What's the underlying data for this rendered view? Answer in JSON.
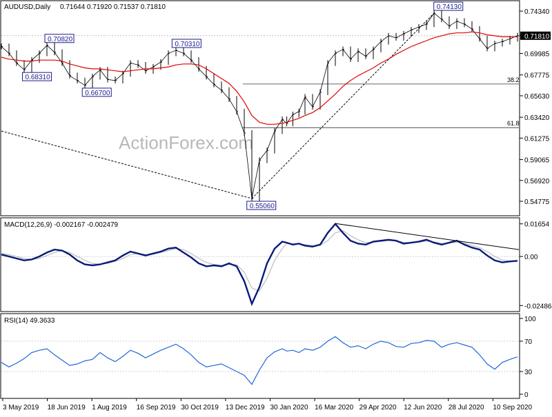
{
  "header": {
    "symbol": "AUDUSD,Daily",
    "ohlc": "0.71644 0.71920 0.71537 0.71810"
  },
  "watermark": "ActionForex.com",
  "colors": {
    "price": "#000000",
    "ma": "#e00000",
    "macd": "#0a1a7a",
    "signal": "#b0b0b0",
    "rsi": "#1f66d8",
    "background": "#ffffff"
  },
  "chart_data": [
    {
      "type": "line",
      "panel": "price",
      "ylim": [
        0.535,
        0.752
      ],
      "y_ticks": [
        "0.74340",
        "0.71810",
        "0.69985",
        "0.67775",
        "0.65630",
        "0.63420",
        "0.61275",
        "0.59065",
        "0.56920",
        "0.54775"
      ],
      "last_price": "0.71810",
      "x_ticks": [
        "3 May 2019",
        "18 Jun 2019",
        "1 Aug 2019",
        "16 Sep 2019",
        "30 Oct 2019",
        "13 Dec 2019",
        "30 Jan 2020",
        "16 Mar 2020",
        "29 Apr 2020",
        "12 Jun 2020",
        "28 Jul 2020",
        "10 Sep 2020"
      ],
      "x": [
        0,
        5,
        10,
        15,
        20,
        25,
        30,
        35,
        40,
        45,
        50,
        55,
        60,
        65,
        70,
        75,
        80,
        85,
        90,
        95,
        100,
        105,
        110,
        115,
        120,
        125,
        130,
        135,
        140,
        145,
        150,
        155,
        160,
        165,
        170,
        175,
        180,
        185,
        188,
        192,
        196,
        200,
        205,
        210,
        215,
        220,
        225,
        230,
        235,
        240,
        245,
        250,
        255,
        260,
        265,
        270,
        275,
        280,
        285,
        290,
        295,
        300,
        305,
        310,
        315,
        320,
        325,
        330,
        335,
        340
      ],
      "series": [
        {
          "values": [
            0.707,
            0.7,
            0.69,
            0.6831,
            0.693,
            0.7,
            0.7082,
            0.701,
            0.69,
            0.677,
            0.672,
            0.667,
            0.676,
            0.683,
            0.673,
            0.672,
            0.679,
            0.69,
            0.688,
            0.682,
            0.686,
            0.691,
            0.7,
            0.7031,
            0.7,
            0.693,
            0.684,
            0.676,
            0.668,
            0.662,
            0.653,
            0.64,
            0.618,
            0.5506,
            0.59,
            0.6,
            0.62,
            0.632,
            0.628,
            0.637,
            0.64,
            0.655,
            0.645,
            0.66,
            0.69,
            0.7,
            0.704,
            0.694,
            0.702,
            0.697,
            0.704,
            0.712,
            0.718,
            0.716,
            0.72,
            0.724,
            0.727,
            0.73,
            0.7413,
            0.735,
            0.728,
            0.733,
            0.73,
            0.725,
            0.715,
            0.705,
            0.71,
            0.712,
            0.715,
            0.7181
          ]
        },
        {
          "values": [
            0.696,
            0.694,
            0.693,
            0.692,
            0.692,
            0.693,
            0.693,
            0.693,
            0.692,
            0.689,
            0.687,
            0.685,
            0.684,
            0.684,
            0.683,
            0.682,
            0.681,
            0.682,
            0.683,
            0.684,
            0.684,
            0.685,
            0.686,
            0.688,
            0.689,
            0.689,
            0.688,
            0.684,
            0.679,
            0.674,
            0.669,
            0.661,
            0.65,
            0.636,
            0.629,
            0.627,
            0.627,
            0.628,
            0.629,
            0.631,
            0.633,
            0.636,
            0.639,
            0.644,
            0.651,
            0.658,
            0.666,
            0.672,
            0.677,
            0.681,
            0.685,
            0.69,
            0.694,
            0.699,
            0.703,
            0.707,
            0.71,
            0.713,
            0.716,
            0.718,
            0.72,
            0.721,
            0.721,
            0.722,
            0.721,
            0.719,
            0.718,
            0.717,
            0.717,
            0.717
          ]
        },
        {
          "x": [
            0,
            35
          ],
          "values": [
            0.62,
            0.5506
          ]
        }
      ],
      "labels": [
        {
          "x": 3,
          "y": 0.6831,
          "text": "0.68310"
        },
        {
          "x": 6,
          "y": 0.7082,
          "text": "0.70820"
        },
        {
          "x": 11,
          "y": 0.667,
          "text": "0.66700"
        },
        {
          "x": 23,
          "y": 0.7031,
          "text": "0.70310"
        },
        {
          "x": 33,
          "y": 0.5506,
          "text": "0.55060"
        },
        {
          "x": 58,
          "y": 0.7413,
          "text": "0.74130"
        }
      ],
      "fibonacci": [
        {
          "label": "38.2",
          "level": 0.6684
        },
        {
          "label": "61.8",
          "level": 0.6235
        }
      ]
    },
    {
      "type": "line",
      "panel": "macd",
      "title": "MACD(12,26,9) -0.002167 -0.002479",
      "ylim": [
        -0.0265,
        0.0175
      ],
      "y_ticks": [
        "0.01654",
        "0.00",
        "-0.02486"
      ],
      "series": [
        {
          "values": [
            0.001,
            0.0,
            -0.001,
            -0.002,
            -0.0015,
            0.0,
            0.002,
            0.0035,
            0.003,
            0.001,
            -0.002,
            -0.004,
            -0.0045,
            -0.004,
            -0.003,
            -0.002,
            0.0005,
            0.0025,
            0.0015,
            0.0005,
            0.0015,
            0.0025,
            0.004,
            0.0045,
            0.002,
            -0.0005,
            -0.0035,
            -0.005,
            -0.0045,
            -0.005,
            -0.0035,
            -0.005,
            -0.0125,
            -0.024,
            -0.0155,
            -0.0035,
            0.004,
            0.0075,
            0.007,
            0.006,
            0.0065,
            0.0055,
            0.005,
            0.006,
            0.012,
            0.0165,
            0.012,
            0.008,
            0.0065,
            0.006,
            0.0075,
            0.008,
            0.0085,
            0.008,
            0.0065,
            0.007,
            0.0075,
            0.0085,
            0.007,
            0.006,
            0.007,
            0.008,
            0.006,
            0.0045,
            0.0035,
            0.0005,
            -0.002,
            -0.003,
            -0.0025,
            -0.0022
          ]
        },
        {
          "values": [
            0.0015,
            0.001,
            0.0,
            -0.001,
            -0.0015,
            -0.001,
            0.0005,
            0.002,
            0.003,
            0.002,
            0.0,
            -0.002,
            -0.0035,
            -0.004,
            -0.0035,
            -0.0025,
            -0.001,
            0.001,
            0.0015,
            0.001,
            0.0012,
            0.002,
            0.003,
            0.004,
            0.0035,
            0.0015,
            -0.001,
            -0.003,
            -0.004,
            -0.0045,
            -0.004,
            -0.0042,
            -0.008,
            -0.016,
            -0.0175,
            -0.011,
            -0.002,
            0.004,
            0.0065,
            0.0065,
            0.0063,
            0.006,
            0.0055,
            0.0057,
            0.008,
            0.012,
            0.013,
            0.0105,
            0.0085,
            0.007,
            0.0072,
            0.0076,
            0.008,
            0.008,
            0.0072,
            0.007,
            0.0072,
            0.0078,
            0.0074,
            0.0066,
            0.0068,
            0.0073,
            0.0067,
            0.0056,
            0.0045,
            0.0025,
            0.0,
            -0.0018,
            -0.0024,
            -0.0025
          ]
        },
        {
          "x": [
            45,
            69
          ],
          "values": [
            0.0167,
            0.0035
          ]
        }
      ]
    },
    {
      "type": "line",
      "panel": "rsi",
      "title": "RSI(14) 49.3633",
      "ylim": [
        0,
        100
      ],
      "y_ticks": [
        "100",
        "70",
        "30",
        "0"
      ],
      "levels": [
        70,
        30
      ],
      "series": [
        {
          "values": [
            42,
            36,
            41,
            47,
            55,
            58,
            60,
            52,
            45,
            38,
            40,
            44,
            46,
            55,
            48,
            43,
            50,
            58,
            54,
            48,
            53,
            58,
            62,
            66,
            60,
            52,
            42,
            36,
            38,
            40,
            35,
            30,
            25,
            13,
            32,
            48,
            56,
            60,
            57,
            58,
            55,
            60,
            58,
            62,
            70,
            76,
            68,
            62,
            64,
            60,
            66,
            70,
            68,
            63,
            62,
            67,
            68,
            71,
            70,
            62,
            66,
            68,
            65,
            62,
            52,
            40,
            33,
            42,
            46,
            49.36
          ]
        }
      ]
    }
  ]
}
